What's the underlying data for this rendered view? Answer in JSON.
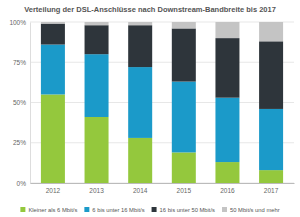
{
  "chart_data": {
    "type": "bar",
    "stacked": true,
    "title": "Verteilung der DSL-Anschlüsse nach Downstream-Bandbreite bis 2017",
    "categories": [
      "2012",
      "2013",
      "2014",
      "2015",
      "2016",
      "2017"
    ],
    "series": [
      {
        "name": "Kleiner als 6 Mbit/s",
        "color": "#94c83d",
        "values": [
          55,
          41,
          28,
          19,
          13,
          8
        ]
      },
      {
        "name": "6 bis unter 16 Mbit/s",
        "color": "#1b9ac9",
        "values": [
          31,
          39,
          44,
          44,
          40,
          38
        ]
      },
      {
        "name": "16 bis unter 50 Mbit/s",
        "color": "#2e353b",
        "values": [
          13,
          18,
          26,
          33,
          37,
          42
        ]
      },
      {
        "name": "50 Mbit/s und mehr",
        "color": "#c4c4c4",
        "values": [
          1,
          2,
          2,
          4,
          10,
          12
        ]
      }
    ],
    "ylim": [
      0,
      100
    ],
    "yticks": [
      {
        "value": 0,
        "label": "0%"
      },
      {
        "value": 25,
        "label": "25%"
      },
      {
        "value": 50,
        "label": "50%"
      },
      {
        "value": 75,
        "label": "75%"
      },
      {
        "value": 100,
        "label": "100%"
      }
    ],
    "grid": true,
    "legend": "bottom"
  }
}
